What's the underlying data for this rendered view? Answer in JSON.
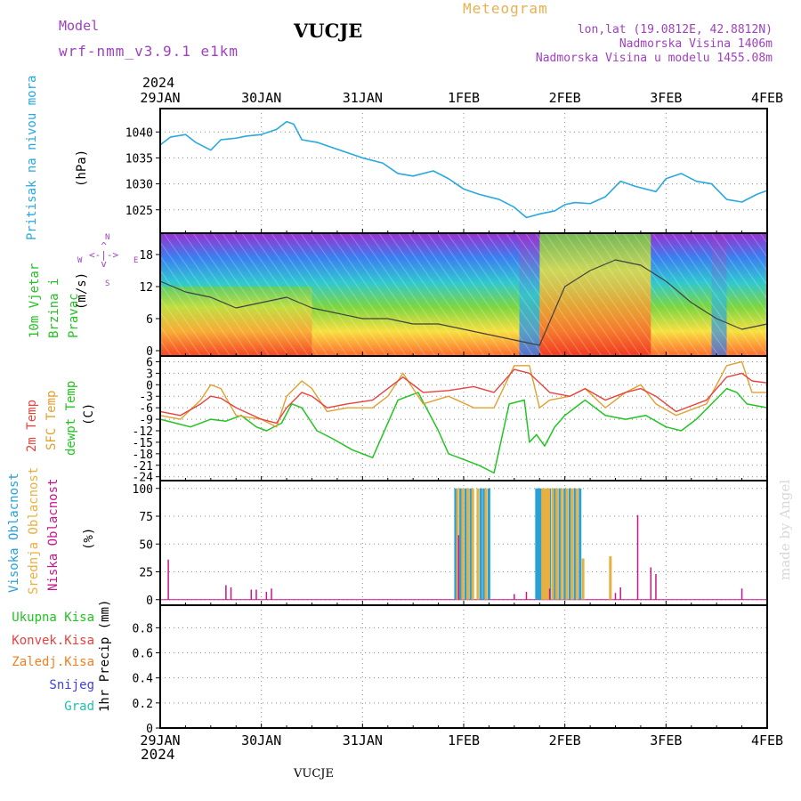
{
  "header": {
    "model_label": "Model",
    "model_name": "wrf-nmm_v3.9.1 e1km",
    "station": "VUCJE",
    "meteogram": "Meteogram",
    "lonlat": "lon,lat (19.0812E, 42.8812N)",
    "elevation": "Nadmorska Visina 1406m",
    "model_elevation": "Nadmorska Visina u modelu 1455.08m",
    "year": "2024",
    "footer_station": "VUCJE",
    "watermark": "made by Angel"
  },
  "colors": {
    "pressure": "#29a8e0",
    "temp2m": "#e8423e",
    "sfc": "#e0a030",
    "dewpt": "#22c422",
    "high_cloud": "#2aa0d8",
    "mid_cloud": "#e8b040",
    "low_cloud": "#c8168c",
    "precip_total": "#22c422",
    "precip_conv": "#e8423e",
    "precip_frz": "#f08020",
    "snow": "#4040e0",
    "graupel": "#20c0b0",
    "wind_label": "#22c422",
    "compass": "#a040c0"
  },
  "chart_data": [
    {
      "type": "line",
      "title": "",
      "ylabel": "Pritisak na nivou mora",
      "unit": "(hPa)",
      "x_ticks": [
        "29JAN",
        "30JAN",
        "31JAN",
        "1FEB",
        "2FEB",
        "3FEB",
        "4FEB"
      ],
      "x_range_days": [
        0,
        6
      ],
      "yticks": [
        1025,
        1030,
        1035,
        1040
      ],
      "ylim": [
        1020.5,
        1044.5
      ],
      "series": [
        {
          "name": "",
          "x": [
            0.0,
            0.1,
            0.25,
            0.35,
            0.5,
            0.6,
            0.75,
            0.85,
            1.0,
            1.15,
            1.25,
            1.32,
            1.4,
            1.55,
            1.7,
            2.0,
            2.2,
            2.35,
            2.5,
            2.7,
            2.85,
            3.0,
            3.15,
            3.35,
            3.5,
            3.62,
            3.75,
            3.9,
            4.0,
            4.1,
            4.25,
            4.4,
            4.55,
            4.7,
            4.9,
            5.0,
            5.15,
            5.3,
            5.45,
            5.6,
            5.75,
            5.9,
            6.0
          ],
          "values": [
            1037.5,
            1039.0,
            1039.5,
            1038.0,
            1036.5,
            1038.5,
            1038.8,
            1039.2,
            1039.5,
            1040.5,
            1042.0,
            1041.5,
            1038.5,
            1038.0,
            1037.0,
            1035.0,
            1034.0,
            1032.0,
            1031.5,
            1032.5,
            1031.0,
            1029.0,
            1028.0,
            1027.0,
            1025.5,
            1023.5,
            1024.2,
            1024.8,
            1026.0,
            1026.4,
            1026.2,
            1027.5,
            1030.5,
            1029.5,
            1028.5,
            1031.0,
            1032.0,
            1030.5,
            1030.0,
            1027.0,
            1026.5,
            1028.0,
            1028.7
          ]
        }
      ]
    },
    {
      "type": "line",
      "title": "",
      "ylabel": "10m Vjetar Brzina i Pravac",
      "unit": "(m/s)",
      "compass": {
        "north": "N",
        "south": "S",
        "west": "W",
        "east": "E"
      },
      "x_ticks": [
        "29JAN",
        "30JAN",
        "31JAN",
        "1FEB",
        "2FEB",
        "3FEB",
        "4FEB"
      ],
      "yticks": [
        0,
        6,
        12,
        18
      ],
      "ylim": [
        -1,
        22
      ],
      "series": [
        {
          "name": "",
          "x": [
            0,
            0.25,
            0.5,
            0.75,
            1.0,
            1.25,
            1.5,
            1.75,
            2.0,
            2.25,
            2.5,
            2.75,
            3.0,
            3.25,
            3.5,
            3.75,
            4.0,
            4.25,
            4.5,
            4.75,
            5.0,
            5.25,
            5.5,
            5.75,
            6.0
          ],
          "values": [
            13,
            11,
            10,
            8,
            9,
            10,
            8,
            7,
            6,
            6,
            5,
            5,
            4,
            3,
            2,
            1,
            12,
            15,
            17,
            16,
            13,
            9,
            6,
            4,
            5
          ]
        }
      ]
    },
    {
      "type": "line",
      "title": "",
      "ylabel": "2m Temp / SFC Temp / dewpt Temp",
      "unit": "(C)",
      "x_ticks": [
        "29JAN",
        "30JAN",
        "31JAN",
        "1FEB",
        "2FEB",
        "3FEB",
        "4FEB"
      ],
      "yticks": [
        -24,
        -21,
        -18,
        -15,
        -12,
        -9,
        -6,
        -3,
        0,
        3,
        6
      ],
      "ylim": [
        -25,
        7.5
      ],
      "series": [
        {
          "name": "2m Temp",
          "x": [
            0,
            0.2,
            0.4,
            0.5,
            0.6,
            0.75,
            1.0,
            1.15,
            1.25,
            1.4,
            1.5,
            1.65,
            1.85,
            2.1,
            2.25,
            2.4,
            2.6,
            2.85,
            3.1,
            3.3,
            3.5,
            3.65,
            3.85,
            4.05,
            4.2,
            4.4,
            4.6,
            4.75,
            4.9,
            5.1,
            5.2,
            5.4,
            5.6,
            5.75,
            5.85,
            6.0
          ],
          "values": [
            -7,
            -8,
            -5,
            -3,
            -3.5,
            -6,
            -9,
            -10,
            -6,
            -2,
            -3,
            -6,
            -5,
            -4,
            -1,
            2,
            -2,
            -1.5,
            -0.5,
            -2,
            4,
            3,
            -2,
            -3,
            -1,
            -4,
            -2,
            -1,
            -3,
            -7,
            -6,
            -4,
            2,
            3,
            1,
            0.5
          ]
        },
        {
          "name": "SFC Temp",
          "x": [
            0,
            0.2,
            0.4,
            0.5,
            0.6,
            0.75,
            1.0,
            1.15,
            1.25,
            1.4,
            1.5,
            1.65,
            1.85,
            2.1,
            2.25,
            2.4,
            2.6,
            2.85,
            3.1,
            3.3,
            3.5,
            3.65,
            3.75,
            3.85,
            4.05,
            4.2,
            4.4,
            4.6,
            4.75,
            4.9,
            5.1,
            5.2,
            5.4,
            5.6,
            5.75,
            5.85,
            6.0
          ],
          "values": [
            -8,
            -9,
            -4,
            0,
            -1,
            -8,
            -9,
            -11,
            -3,
            1,
            -1,
            -7,
            -6,
            -6,
            -3,
            3,
            -5,
            -3,
            -6,
            -6,
            5,
            5,
            -6,
            -4,
            -3,
            -1,
            -6,
            -2,
            0,
            -5,
            -8,
            -7,
            -5,
            5,
            6,
            -2,
            -2
          ]
        },
        {
          "name": "dewpt Temp",
          "x": [
            0,
            0.15,
            0.3,
            0.5,
            0.65,
            0.8,
            0.95,
            1.05,
            1.2,
            1.3,
            1.4,
            1.55,
            1.7,
            1.9,
            2.1,
            2.35,
            2.55,
            2.75,
            2.85,
            3.0,
            3.15,
            3.3,
            3.45,
            3.6,
            3.65,
            3.72,
            3.8,
            3.9,
            4.0,
            4.1,
            4.2,
            4.4,
            4.6,
            4.8,
            5.0,
            5.15,
            5.3,
            5.45,
            5.6,
            5.7,
            5.8,
            6.0
          ],
          "values": [
            -9,
            -10,
            -11,
            -9,
            -9.5,
            -8,
            -11,
            -12,
            -10,
            -5,
            -6,
            -12,
            -14,
            -17,
            -19,
            -4,
            -2,
            -12,
            -18,
            -19.5,
            -21,
            -23,
            -5,
            -4,
            -15,
            -13,
            -16,
            -11,
            -8,
            -6,
            -4,
            -8,
            -9,
            -8,
            -11,
            -12,
            -9,
            -5,
            -1,
            -2,
            -5,
            -6
          ]
        }
      ]
    },
    {
      "type": "bar",
      "title": "",
      "ylabel": "Visoka Oblacnost / Srednja Oblacnost / Niska Oblacnost",
      "unit": "(%)",
      "x_ticks": [
        "29JAN",
        "30JAN",
        "31JAN",
        "1FEB",
        "2FEB",
        "3FEB",
        "4FEB"
      ],
      "yticks": [
        0,
        25,
        50,
        75,
        100
      ],
      "ylim": [
        -5,
        107
      ],
      "series": [
        {
          "name": "Visoka Oblacnost",
          "x": [
            2.92,
            2.97,
            3.02,
            3.07,
            3.17,
            3.2,
            3.25,
            3.72,
            3.74,
            3.76,
            3.85,
            3.9,
            3.95,
            4.0,
            4.05,
            4.1,
            4.15
          ],
          "values": [
            100,
            100,
            100,
            100,
            100,
            100,
            100,
            100,
            100,
            100,
            100,
            100,
            100,
            100,
            100,
            100,
            100
          ]
        },
        {
          "name": "Srednja Oblacnost",
          "x": [
            2.94,
            2.99,
            3.04,
            3.09,
            3.14,
            3.22,
            3.78,
            3.8,
            3.82,
            3.84,
            3.88,
            3.92,
            3.97,
            4.02,
            4.07,
            4.12,
            4.18,
            4.45
          ],
          "values": [
            100,
            100,
            100,
            100,
            100,
            100,
            100,
            100,
            100,
            100,
            100,
            100,
            100,
            100,
            100,
            100,
            37,
            39
          ]
        },
        {
          "name": "Niska Oblacnost",
          "x": [
            0.08,
            0.65,
            0.7,
            0.9,
            0.95,
            1.05,
            1.1,
            2.95,
            3.5,
            3.62,
            3.85,
            4.55,
            4.5,
            4.72,
            4.85,
            4.9,
            5.75
          ],
          "values": [
            36,
            13,
            11,
            9,
            9,
            7,
            10,
            58,
            5,
            7,
            10,
            11,
            6,
            76,
            29,
            23,
            10
          ]
        }
      ]
    },
    {
      "type": "bar",
      "title": "",
      "ylabel": "1hr Precip",
      "unit": "(mm)",
      "legend": [
        "Ukupna Kisa",
        "Konvek.Kisa",
        "Zaledj.Kisa",
        "Snijeg",
        "Grad"
      ],
      "x_ticks": [
        "29JAN",
        "30JAN",
        "31JAN",
        "1FEB",
        "2FEB",
        "3FEB",
        "4FEB"
      ],
      "yticks": [
        0,
        0.2,
        0.4,
        0.6,
        0.8
      ],
      "ylim": [
        0,
        0.98
      ],
      "series": []
    }
  ]
}
